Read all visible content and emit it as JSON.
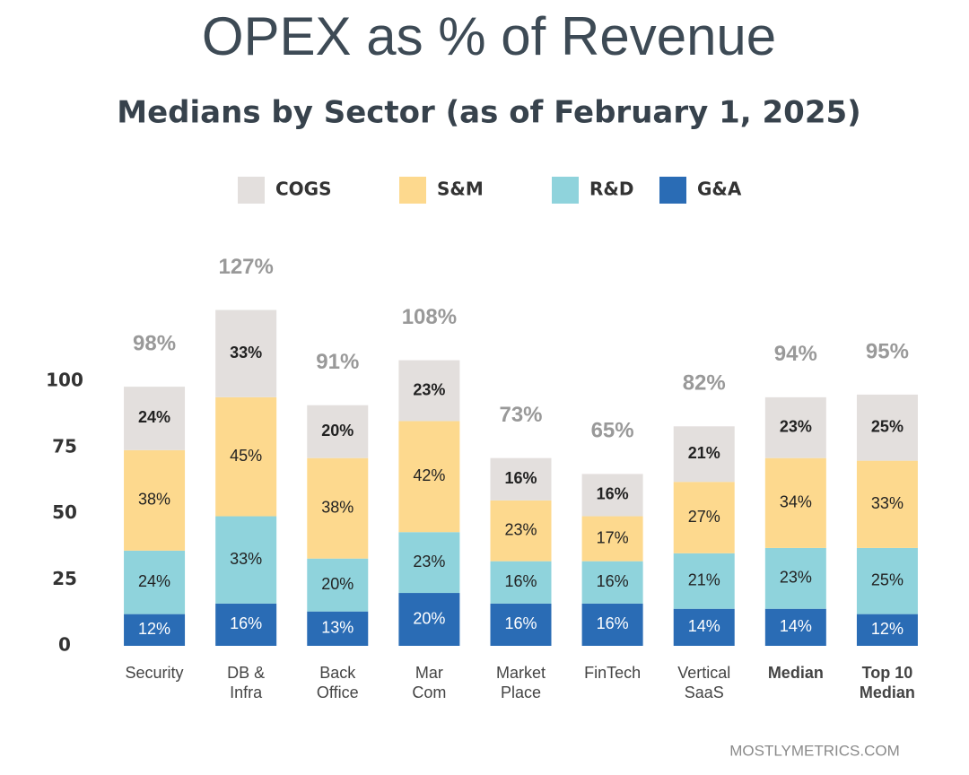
{
  "chart_data": {
    "type": "stacked_bar",
    "title": "OPEX as % of Revenue",
    "subtitle": "Medians by Sector (as of  February 1, 2025)",
    "source": "MOSTLYMETRICS.COM",
    "categories": [
      [
        "Security"
      ],
      [
        "DB &",
        "Infra"
      ],
      [
        "Back",
        "Office"
      ],
      [
        "Mar",
        "Com"
      ],
      [
        "Market",
        "Place"
      ],
      [
        "FinTech"
      ],
      [
        "Vertical",
        "SaaS"
      ],
      [
        "Median"
      ],
      [
        "Top 10",
        "Median"
      ]
    ],
    "series": [
      {
        "name": "COGS",
        "color": "#e3dfdd",
        "values": [
          24,
          33,
          20,
          23,
          16,
          16,
          21,
          23,
          25
        ],
        "value_labels": [
          "24%",
          "33%",
          "20%",
          "23%",
          "16%",
          "16%",
          "21%",
          "23%",
          "25%"
        ]
      },
      {
        "name": "S&M",
        "color": "#fdd98e",
        "values": [
          38,
          45,
          38,
          42,
          23,
          17,
          27,
          34,
          33
        ],
        "value_labels": [
          "38%",
          "45%",
          "38%",
          "42%",
          "23%",
          "17%",
          "27%",
          "34%",
          "33%"
        ]
      },
      {
        "name": "R&D",
        "color": "#8fd3dc",
        "values": [
          24,
          33,
          20,
          23,
          16,
          16,
          21,
          23,
          25
        ],
        "value_labels": [
          "24%",
          "33%",
          "20%",
          "23%",
          "16%",
          "16%",
          "21%",
          "23%",
          "25%"
        ]
      },
      {
        "name": "G&A",
        "color": "#2a6cb5",
        "values": [
          12,
          16,
          13,
          20,
          16,
          16,
          14,
          14,
          12
        ],
        "value_labels": [
          "12%",
          "16%",
          "13%",
          "20%",
          "16%",
          "16%",
          "14%",
          "14%",
          "12%"
        ]
      }
    ],
    "totals": {
      "values": [
        98,
        127,
        91,
        108,
        73,
        65,
        82,
        94,
        95
      ],
      "value_labels": [
        "98%",
        "127%",
        "91%",
        "108%",
        "73%",
        "65%",
        "82%",
        "94%",
        "95%"
      ]
    },
    "ylim": [
      0,
      135
    ],
    "yticks": [
      0,
      25,
      50,
      75,
      100
    ],
    "grid": false
  }
}
